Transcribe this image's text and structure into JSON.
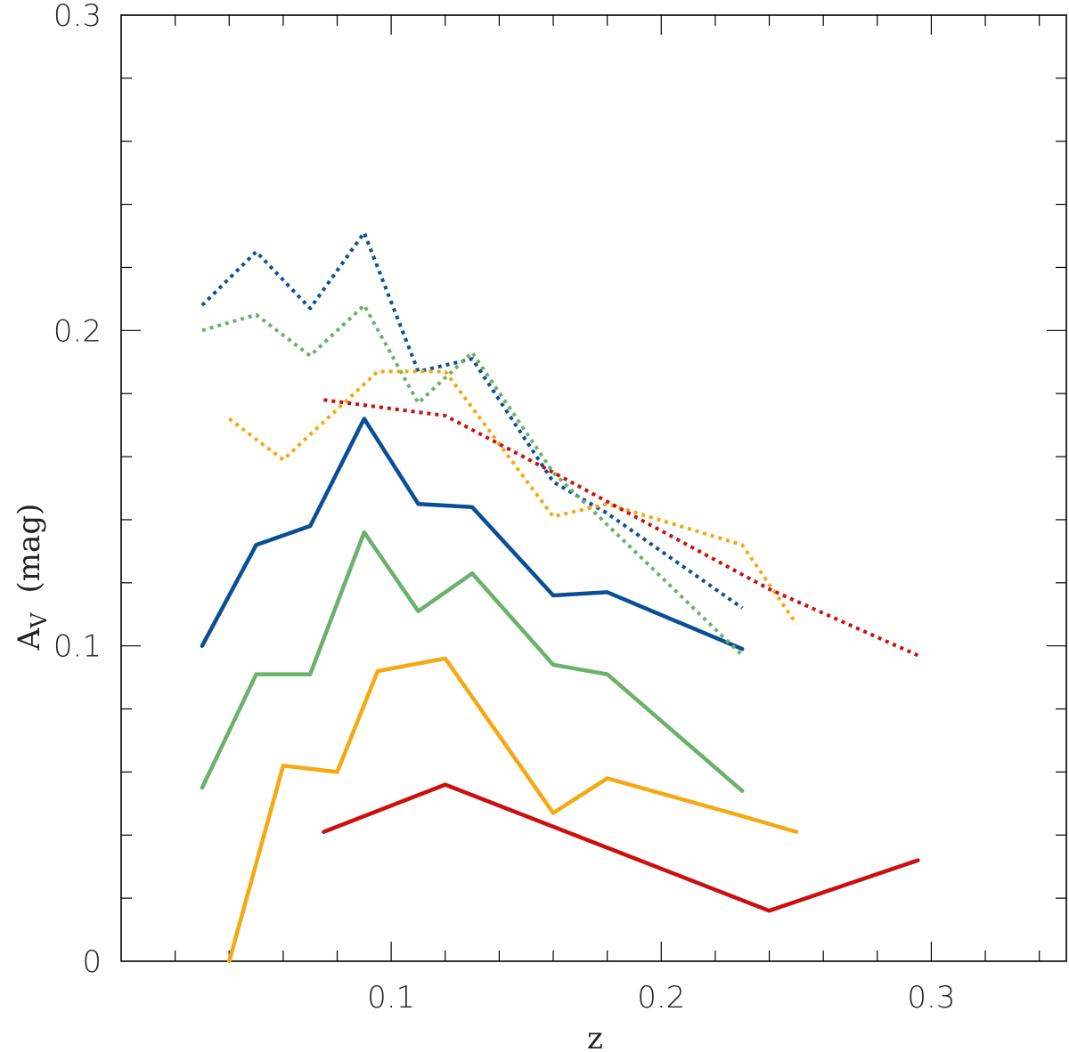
{
  "chart_data": {
    "type": "line",
    "xlabel": "z",
    "ylabel": "A",
    "ylabel_subscript": "V",
    "ylabel_unit": "(mag)",
    "xlim": [
      0.0,
      0.35
    ],
    "ylim": [
      0.0,
      0.3
    ],
    "x_ticks_major": [
      0.1,
      0.2,
      0.3
    ],
    "x_tick_labels": [
      "0.1",
      "0.2",
      "0.3"
    ],
    "x_ticks_minor_step": 0.02,
    "y_ticks_major": [
      0,
      0.1,
      0.2,
      0.3
    ],
    "y_tick_labels": [
      "0",
      "0.1",
      "0.2",
      "0.3"
    ],
    "y_ticks_minor_step": 0.02,
    "grid": false,
    "series": [
      {
        "color": "#0a4f96",
        "style": "solid",
        "x": [
          0.03,
          0.05,
          0.07,
          0.09,
          0.11,
          0.13,
          0.16,
          0.18,
          0.23
        ],
        "y": [
          0.1,
          0.132,
          0.138,
          0.172,
          0.145,
          0.144,
          0.116,
          0.117,
          0.099
        ]
      },
      {
        "color": "#6ab26a",
        "style": "solid",
        "x": [
          0.03,
          0.05,
          0.07,
          0.09,
          0.11,
          0.13,
          0.16,
          0.18,
          0.23
        ],
        "y": [
          0.055,
          0.091,
          0.091,
          0.136,
          0.111,
          0.123,
          0.094,
          0.091,
          0.054
        ]
      },
      {
        "color": "#f5a812",
        "style": "solid",
        "x": [
          0.04,
          0.06,
          0.08,
          0.095,
          0.12,
          0.16,
          0.18,
          0.23,
          0.25
        ],
        "y": [
          0.0,
          0.062,
          0.06,
          0.092,
          0.096,
          0.047,
          0.058,
          0.046,
          0.041
        ]
      },
      {
        "color": "#cc0e0e",
        "style": "solid",
        "x": [
          0.075,
          0.12,
          0.24,
          0.295
        ],
        "y": [
          0.041,
          0.056,
          0.016,
          0.032
        ]
      },
      {
        "color": "#0a4f96",
        "style": "dotted",
        "x": [
          0.03,
          0.05,
          0.07,
          0.09,
          0.11,
          0.13,
          0.16,
          0.18,
          0.23
        ],
        "y": [
          0.208,
          0.225,
          0.207,
          0.231,
          0.187,
          0.191,
          0.152,
          0.142,
          0.112
        ]
      },
      {
        "color": "#6ab26a",
        "style": "dotted",
        "x": [
          0.03,
          0.05,
          0.07,
          0.09,
          0.11,
          0.13,
          0.16,
          0.23
        ],
        "y": [
          0.2,
          0.205,
          0.192,
          0.208,
          0.177,
          0.193,
          0.155,
          0.097
        ]
      },
      {
        "color": "#f5a812",
        "style": "dotted",
        "x": [
          0.04,
          0.06,
          0.08,
          0.095,
          0.12,
          0.16,
          0.18,
          0.23,
          0.25
        ],
        "y": [
          0.172,
          0.159,
          0.175,
          0.187,
          0.187,
          0.141,
          0.145,
          0.132,
          0.107
        ]
      },
      {
        "color": "#cc0e0e",
        "style": "dotted",
        "x": [
          0.075,
          0.12,
          0.16,
          0.24,
          0.295
        ],
        "y": [
          0.178,
          0.173,
          0.155,
          0.118,
          0.097
        ]
      }
    ]
  }
}
